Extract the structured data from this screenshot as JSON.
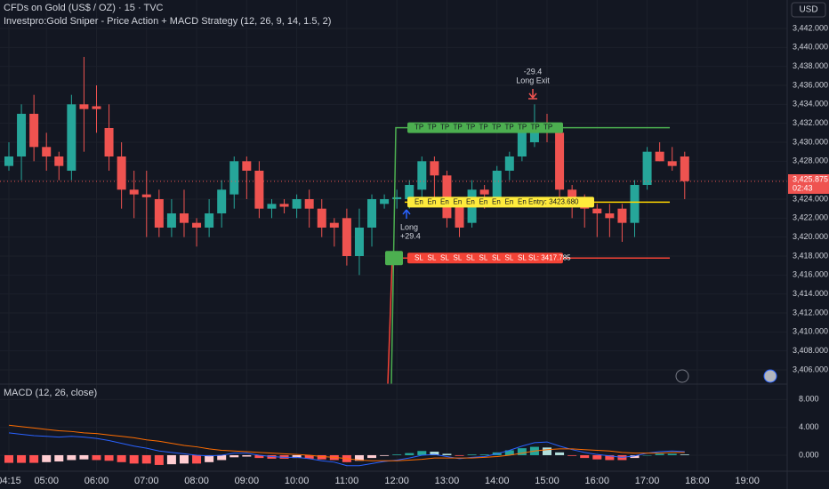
{
  "chart_data": [
    {
      "type": "candlestick",
      "title": "CFDs on Gold (US$ / OZ) · 15 · TVC",
      "subtitle": "Investpro:Gold Sniper - Price Action + MACD Strategy (12, 26, 9, 14, 1.5, 2)",
      "currency": "USD",
      "categories": [
        "04:15",
        null,
        null,
        "05:00",
        null,
        null,
        null,
        "06:00",
        null,
        null,
        null,
        "07:00",
        null,
        null,
        null,
        "08:00",
        null,
        null,
        null,
        "09:00",
        null,
        null,
        null,
        "10:00",
        null,
        null,
        null,
        "11:00",
        null,
        null,
        null,
        "12:00",
        null,
        null,
        null,
        "13:00",
        null,
        null,
        null,
        "14:00",
        null,
        null,
        null,
        "15:00",
        null,
        null,
        null,
        "16:00",
        null,
        null,
        null,
        "17:00",
        null,
        null,
        null,
        "18:00",
        null,
        null,
        null,
        "19:00"
      ],
      "open": [
        3427.5,
        3428.5,
        3433,
        3429.5,
        3428.5,
        3427,
        3434,
        3433.8,
        3431.5,
        3428.5,
        3425,
        3424.5,
        3424,
        3421,
        3422.5,
        3421.5,
        3421,
        3422.5,
        3424.5,
        3428,
        3427,
        3423,
        3423.5,
        3423,
        3424,
        3423,
        3421.5,
        3422,
        3418,
        3421,
        3423.5,
        3424,
        3424,
        3425,
        3428,
        3426.5,
        3423.5,
        3421.5,
        3425,
        3424,
        3427,
        3428.5,
        3430,
        3432,
        3431,
        3425,
        3424,
        3423,
        3422.5,
        3423,
        3421.5,
        3425.5,
        3429,
        3428,
        3428.5,
        null,
        null,
        null,
        null,
        null
      ],
      "high": [
        3430,
        3434,
        3435,
        3431,
        3429,
        3435,
        3439,
        3436,
        3434,
        3430,
        3427,
        3427,
        3425,
        3424,
        3425,
        3422,
        3424,
        3426,
        3428.5,
        3428.5,
        3428,
        3424,
        3424,
        3424.5,
        3425,
        3424,
        3422,
        3423,
        3423,
        3424.5,
        3424.5,
        3425,
        3426,
        3428.5,
        3428.5,
        3427,
        3424,
        3426,
        3425.5,
        3427.5,
        3429,
        3432,
        3434,
        3433,
        3431.5,
        3425.5,
        3424.5,
        3423.5,
        3423.5,
        3423.5,
        3426,
        3429.5,
        3430,
        3429.5,
        3429,
        null,
        null,
        null,
        null,
        null
      ],
      "low": [
        3427,
        3426,
        3428,
        3427,
        3426,
        3426,
        3429,
        3431,
        3427,
        3423,
        3422,
        3420,
        3420,
        3420,
        3420,
        3419,
        3420,
        3421,
        3423,
        3424,
        3422,
        3422,
        3422.5,
        3422,
        3421,
        3420,
        3419,
        3417,
        3416,
        3419,
        3423,
        3423,
        3423,
        3424,
        3424,
        3421,
        3420,
        3421,
        3423,
        3423.5,
        3426,
        3428,
        3429.5,
        3430,
        3424,
        3422,
        3421,
        3420,
        3420,
        3419.5,
        3420,
        3425,
        3428,
        3427,
        3424,
        null,
        null,
        null,
        null,
        null
      ],
      "close": [
        3428.5,
        3433,
        3429.5,
        3428.5,
        3427.5,
        3434,
        3433.5,
        3433.5,
        3428.5,
        3425,
        3424.5,
        3424.2,
        3421,
        3422.5,
        3421.5,
        3421,
        3422.5,
        3425,
        3428,
        3427,
        3423,
        3423.5,
        3423.2,
        3424,
        3423,
        3421,
        3421,
        3418,
        3421,
        3424,
        3424,
        3424.2,
        3425.5,
        3428,
        3426.5,
        3422,
        3421,
        3425,
        3424.5,
        3427,
        3428.5,
        3431,
        3432,
        3431,
        3425,
        3423.5,
        3423,
        3422.5,
        3422,
        3421.5,
        3425.5,
        3429,
        3428,
        3427.5,
        3425.9,
        null,
        null,
        null,
        null,
        null
      ],
      "up_color": "#26a69a",
      "down_color": "#ef5350",
      "ylim": [
        3404.5,
        3445
      ],
      "yticks": [
        {
          "value": 3406,
          "label": "3,406.000"
        },
        {
          "value": 3408,
          "label": "3,408.000"
        },
        {
          "value": 3410,
          "label": "3,410.000"
        },
        {
          "value": 3412,
          "label": "3,412.000"
        },
        {
          "value": 3414,
          "label": "3,414.000"
        },
        {
          "value": 3416,
          "label": "3,416.000"
        },
        {
          "value": 3418,
          "label": "3,418.000"
        },
        {
          "value": 3420,
          "label": "3,420.000"
        },
        {
          "value": 3422,
          "label": "3,422.000"
        },
        {
          "value": 3424,
          "label": "3,424.000"
        },
        {
          "value": 3426,
          "label": "3,426.000"
        },
        {
          "value": 3428,
          "label": "3,428.000"
        },
        {
          "value": 3430,
          "label": "3,430.000"
        },
        {
          "value": 3432,
          "label": "3,432.000"
        },
        {
          "value": 3434,
          "label": "3,434.000"
        },
        {
          "value": 3436,
          "label": "3,436.000"
        },
        {
          "value": 3438,
          "label": "3,438.000"
        },
        {
          "value": 3440,
          "label": "3,440.000"
        },
        {
          "value": 3442,
          "label": "3,442.000"
        }
      ],
      "grid": true,
      "last_price": {
        "value": 3425.875,
        "label": "3,425.875"
      },
      "countdown": "02:43",
      "strategy": {
        "tp": 3431.54,
        "entry": 3423.68,
        "sl": 3417.785,
        "tp_tag": "TP",
        "sl_tag": "SL",
        "entry_tag": "En",
        "entry_label": "Entry: 3423.680",
        "sl_label": "SL: 3417.785"
      },
      "trades": [
        {
          "label": "Long",
          "value": 29.4,
          "value_label": "+29.4"
        },
        {
          "label": "Long Exit",
          "value": -29.4,
          "value_label": "-29.4"
        }
      ]
    },
    {
      "type": "macd",
      "title": "MACD (12, 26, close)",
      "ylim": [
        -2.3,
        10.2
      ],
      "yticks": [
        {
          "value": 0,
          "label": "0.000"
        },
        {
          "value": 4,
          "label": "4.000"
        },
        {
          "value": 8,
          "label": "8.000"
        }
      ],
      "histogram": [
        -1.1,
        -1.1,
        -1.1,
        -1.0,
        -0.9,
        -0.7,
        -0.6,
        -0.7,
        -0.8,
        -1.0,
        -1.2,
        -1.2,
        -1.4,
        -1.3,
        -1.2,
        -1.2,
        -1.0,
        -0.7,
        -0.3,
        -0.2,
        -0.4,
        -0.5,
        -0.5,
        -0.4,
        -0.5,
        -0.6,
        -0.7,
        -1.0,
        -0.8,
        -0.4,
        -0.1,
        0.1,
        0.3,
        0.6,
        0.5,
        0.2,
        -0.1,
        0.1,
        0.1,
        0.4,
        0.7,
        1.0,
        1.2,
        1.1,
        0.4,
        -0.1,
        -0.4,
        -0.6,
        -0.7,
        -0.7,
        -0.4,
        0.0,
        0.2,
        0.2,
        0.1
      ],
      "hist_colors": {
        "up_strong": "#26a69a",
        "up_weak": "#b2dfdb",
        "down_strong": "#ff5252",
        "down_weak": "#ffcdd2"
      },
      "series": [
        {
          "color": "#2962ff",
          "values": [
            3.2,
            3.0,
            2.8,
            2.7,
            2.6,
            2.7,
            2.6,
            2.4,
            2.1,
            1.7,
            1.3,
            1.0,
            0.6,
            0.4,
            0.2,
            0.0,
            -0.1,
            0.0,
            0.3,
            0.3,
            0.0,
            -0.2,
            -0.3,
            -0.3,
            -0.5,
            -0.8,
            -1.0,
            -1.5,
            -1.5,
            -1.2,
            -0.9,
            -0.7,
            -0.4,
            0.0,
            0.1,
            -0.2,
            -0.5,
            -0.3,
            -0.2,
            0.2,
            0.7,
            1.3,
            1.8,
            1.9,
            1.3,
            0.8,
            0.4,
            0.1,
            -0.1,
            -0.3,
            -0.1,
            0.3,
            0.5,
            0.6,
            0.5
          ]
        },
        {
          "color": "#ff6d00",
          "values": [
            4.3,
            4.1,
            3.9,
            3.7,
            3.5,
            3.4,
            3.2,
            3.1,
            2.9,
            2.7,
            2.5,
            2.2,
            2.0,
            1.7,
            1.4,
            1.2,
            0.9,
            0.7,
            0.6,
            0.5,
            0.4,
            0.3,
            0.2,
            0.1,
            0.0,
            -0.2,
            -0.3,
            -0.5,
            -0.7,
            -0.8,
            -0.8,
            -0.8,
            -0.7,
            -0.6,
            -0.4,
            -0.4,
            -0.4,
            -0.4,
            -0.3,
            -0.2,
            0.0,
            0.3,
            0.6,
            0.8,
            0.9,
            0.9,
            0.8,
            0.7,
            0.6,
            0.4,
            0.3,
            0.3,
            0.3,
            0.4,
            0.4
          ]
        }
      ]
    }
  ]
}
